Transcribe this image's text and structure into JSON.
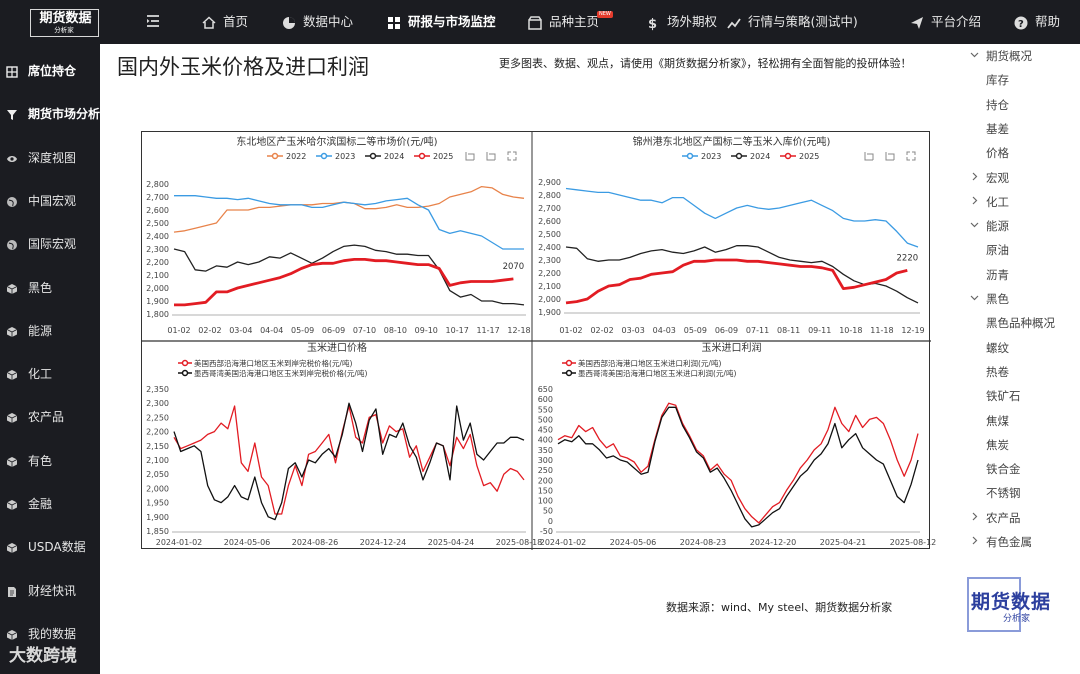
{
  "brand": {
    "name": "期货数据",
    "sub": "分析家"
  },
  "nav": [
    {
      "label": "首页",
      "icon": "home-icon"
    },
    {
      "label": "数据中心",
      "icon": "pie-icon"
    },
    {
      "label": "研报与市场监控",
      "icon": "grid-icon",
      "active": true
    },
    {
      "label": "品种主页",
      "icon": "store-icon",
      "badge": "NEW"
    },
    {
      "label": "场外期权",
      "icon": "dollar-icon"
    },
    {
      "label": "行情与策略(测试中)",
      "icon": "chart-up-icon"
    },
    {
      "label": "平台介绍",
      "icon": "send-icon"
    },
    {
      "label": "帮助",
      "icon": "help-icon"
    }
  ],
  "sidebar": [
    {
      "label": "席位持仓",
      "icon": "table-icon",
      "bold": true
    },
    {
      "label": "期货市场分析",
      "icon": "funnel-icon",
      "bold": true
    },
    {
      "label": "深度视图",
      "icon": "eye-icon"
    },
    {
      "label": "中国宏观",
      "icon": "globe-icon"
    },
    {
      "label": "国际宏观",
      "icon": "globe-icon"
    },
    {
      "label": "黑色",
      "icon": "cube-icon"
    },
    {
      "label": "能源",
      "icon": "cube-icon"
    },
    {
      "label": "化工",
      "icon": "cube-icon"
    },
    {
      "label": "农产品",
      "icon": "cube-icon"
    },
    {
      "label": "有色",
      "icon": "cube-icon"
    },
    {
      "label": "金融",
      "icon": "cube-icon"
    },
    {
      "label": "USDA数据",
      "icon": "cube-icon"
    },
    {
      "label": "财经快讯",
      "icon": "doc-icon"
    },
    {
      "label": "我的数据",
      "icon": "cube-icon"
    }
  ],
  "watermark": "大数跨境",
  "page": {
    "title": "国内外玉米价格及进口利润",
    "promo": "更多图表、数据、观点，请使用《期货数据分析家》，轻松拥有全面智能的投研体验！",
    "source": "数据来源：wind、My steel、期货数据分析家"
  },
  "rightnav": [
    {
      "label": "期货概况",
      "caret": "v",
      "level": 1
    },
    {
      "label": "库存",
      "level": 2
    },
    {
      "label": "持仓",
      "level": 2
    },
    {
      "label": "基差",
      "level": 2
    },
    {
      "label": "价格",
      "level": 2
    },
    {
      "label": "宏观",
      "caret": ">",
      "level": 1
    },
    {
      "label": "化工",
      "caret": ">",
      "level": 1
    },
    {
      "label": "能源",
      "caret": "v",
      "level": 1
    },
    {
      "label": "原油",
      "level": 2
    },
    {
      "label": "沥青",
      "level": 2
    },
    {
      "label": "黑色",
      "caret": "v",
      "level": 1
    },
    {
      "label": "黑色品种概况",
      "level": 2
    },
    {
      "label": "螺纹",
      "level": 2
    },
    {
      "label": "热卷",
      "level": 2
    },
    {
      "label": "铁矿石",
      "level": 2
    },
    {
      "label": "焦煤",
      "level": 2
    },
    {
      "label": "焦炭",
      "level": 2
    },
    {
      "label": "铁合金",
      "level": 2
    },
    {
      "label": "不锈钢",
      "level": 2
    },
    {
      "label": "农产品",
      "caret": ">",
      "level": 1
    },
    {
      "label": "有色金属",
      "caret": ">",
      "level": 1
    }
  ],
  "chart_data": [
    {
      "type": "line",
      "title": "东北地区产玉米哈尔滨国标二等市场价(元/吨)",
      "ylim": [
        1800,
        2800
      ],
      "yticks": [
        1800,
        1900,
        2000,
        2100,
        2200,
        2300,
        2400,
        2500,
        2600,
        2700,
        2800
      ],
      "xticks": [
        "01-02",
        "02-02",
        "03-04",
        "04-04",
        "05-09",
        "06-09",
        "07-10",
        "08-10",
        "09-10",
        "10-17",
        "11-17",
        "12-18"
      ],
      "annotation": "2070",
      "series": [
        {
          "name": "2022",
          "color": "#e8834a",
          "values": [
            2430,
            2440,
            2460,
            2480,
            2500,
            2600,
            2600,
            2600,
            2620,
            2620,
            2630,
            2640,
            2640,
            2640,
            2650,
            2650,
            2660,
            2650,
            2610,
            2610,
            2620,
            2640,
            2620,
            2620,
            2630,
            2650,
            2700,
            2720,
            2740,
            2780,
            2770,
            2720,
            2700,
            2690
          ]
        },
        {
          "name": "2023",
          "color": "#3b9be3",
          "values": [
            2710,
            2710,
            2710,
            2700,
            2690,
            2690,
            2680,
            2690,
            2670,
            2650,
            2640,
            2640,
            2640,
            2620,
            2620,
            2640,
            2660,
            2650,
            2640,
            2650,
            2670,
            2680,
            2690,
            2640,
            2600,
            2450,
            2420,
            2440,
            2420,
            2400,
            2350,
            2300,
            2300,
            2300
          ]
        },
        {
          "name": "2024",
          "color": "#222222",
          "values": [
            2300,
            2280,
            2140,
            2130,
            2170,
            2160,
            2200,
            2180,
            2200,
            2240,
            2230,
            2270,
            2230,
            2190,
            2230,
            2280,
            2320,
            2330,
            2320,
            2290,
            2280,
            2260,
            2260,
            2250,
            2250,
            2140,
            1980,
            1930,
            1950,
            1900,
            1900,
            1880,
            1880,
            1870
          ]
        },
        {
          "name": "2025",
          "color": "#e21c23",
          "values": [
            1870,
            1870,
            1880,
            1890,
            1970,
            1970,
            2000,
            2020,
            2040,
            2060,
            2080,
            2110,
            2150,
            2180,
            2190,
            2190,
            2210,
            2220,
            2220,
            2210,
            2210,
            2200,
            2190,
            2180,
            2180,
            2150,
            2020,
            2040,
            2050,
            2050,
            2050,
            2060,
            2070
          ]
        }
      ]
    },
    {
      "type": "line",
      "title": "锦州港东北地区产国标二等玉米入库价(元吨)",
      "ylim": [
        1900,
        2900
      ],
      "yticks": [
        1900,
        2000,
        2100,
        2200,
        2300,
        2400,
        2500,
        2600,
        2700,
        2800,
        2900
      ],
      "xticks": [
        "01-02",
        "02-02",
        "03-03",
        "04-03",
        "05-09",
        "06-09",
        "07-11",
        "08-11",
        "09-11",
        "10-18",
        "11-18",
        "12-19"
      ],
      "annotation": "2220",
      "series": [
        {
          "name": "2023",
          "color": "#3b9be3",
          "values": [
            2850,
            2840,
            2830,
            2820,
            2820,
            2800,
            2780,
            2760,
            2760,
            2740,
            2780,
            2780,
            2720,
            2660,
            2620,
            2660,
            2700,
            2720,
            2700,
            2690,
            2700,
            2720,
            2740,
            2760,
            2720,
            2680,
            2620,
            2600,
            2600,
            2610,
            2600,
            2520,
            2430,
            2400
          ]
        },
        {
          "name": "2024",
          "color": "#222222",
          "values": [
            2400,
            2390,
            2310,
            2290,
            2300,
            2300,
            2320,
            2350,
            2370,
            2380,
            2360,
            2350,
            2370,
            2400,
            2360,
            2380,
            2410,
            2410,
            2400,
            2360,
            2320,
            2300,
            2290,
            2280,
            2290,
            2250,
            2190,
            2140,
            2110,
            2120,
            2100,
            2060,
            2010,
            1970
          ]
        },
        {
          "name": "2025",
          "color": "#e21c23",
          "values": [
            1970,
            1980,
            2000,
            2060,
            2100,
            2110,
            2150,
            2160,
            2190,
            2200,
            2210,
            2260,
            2290,
            2290,
            2300,
            2300,
            2300,
            2290,
            2290,
            2280,
            2270,
            2260,
            2250,
            2250,
            2240,
            2220,
            2080,
            2090,
            2110,
            2130,
            2150,
            2200,
            2220
          ]
        }
      ]
    },
    {
      "type": "line",
      "title": "玉米进口价格",
      "ylim": [
        1850,
        2350
      ],
      "yticks": [
        1850,
        1900,
        1950,
        2000,
        2050,
        2100,
        2150,
        2200,
        2250,
        2300,
        2350
      ],
      "xticks": [
        "2024-01-02",
        "2024-05-06",
        "2024-08-26",
        "2024-12-24",
        "2025-04-24",
        "2025-08-18"
      ],
      "series": [
        {
          "name": "美国西部沿海港口地区玉米到岸完税价格(元/吨)",
          "color": "#e21c23",
          "values": [
            2180,
            2140,
            2150,
            2160,
            2170,
            2190,
            2200,
            2230,
            2210,
            2290,
            2090,
            2060,
            2160,
            2040,
            2010,
            1910,
            1910,
            2010,
            2080,
            2010,
            2120,
            2130,
            2160,
            2190,
            2090,
            2200,
            2290,
            2180,
            2160,
            2250,
            2260,
            2160,
            2220,
            2200,
            2210,
            2110,
            2150,
            2060,
            2110,
            2160,
            2150,
            2080,
            2180,
            2140,
            2190,
            2080,
            2010,
            2020,
            1990,
            2050,
            2070,
            2060,
            2030
          ]
        },
        {
          "name": "墨西哥湾美国沿海港口地区玉米到岸完税价格(元/吨)",
          "color": "#111111",
          "values": [
            2200,
            2130,
            2140,
            2150,
            2130,
            2010,
            1960,
            1950,
            1970,
            2010,
            1970,
            1960,
            2040,
            1950,
            1900,
            1890,
            1950,
            2070,
            2090,
            2040,
            2100,
            2090,
            2120,
            2140,
            2110,
            2190,
            2300,
            2230,
            2130,
            2240,
            2280,
            2120,
            2190,
            2180,
            2230,
            2150,
            2110,
            2030,
            2090,
            2160,
            2150,
            2030,
            2290,
            2170,
            2230,
            2120,
            2100,
            2130,
            2160,
            2160,
            2180,
            2180,
            2170
          ]
        }
      ]
    },
    {
      "type": "line",
      "title": "玉米进口利润",
      "ylim": [
        -50,
        650
      ],
      "yticks": [
        -50,
        0,
        50,
        100,
        150,
        200,
        250,
        300,
        350,
        400,
        450,
        500,
        550,
        600,
        650
      ],
      "xticks": [
        "2024-01-02",
        "2024-05-06",
        "2024-08-23",
        "2024-12-20",
        "2025-04-21",
        "2025-08-12"
      ],
      "series": [
        {
          "name": "美国西部沿海港口地区玉米进口利润(元/吨)",
          "color": "#e21c23",
          "values": [
            400,
            420,
            410,
            470,
            440,
            460,
            400,
            360,
            380,
            320,
            310,
            290,
            240,
            270,
            400,
            520,
            580,
            570,
            480,
            420,
            350,
            320,
            250,
            280,
            230,
            200,
            120,
            60,
            20,
            -10,
            30,
            70,
            90,
            150,
            200,
            260,
            300,
            350,
            380,
            450,
            560,
            480,
            440,
            520,
            460,
            500,
            510,
            480,
            400,
            300,
            220,
            300,
            430
          ]
        },
        {
          "name": "墨西哥湾美国沿海港口地区玉米进口利润(元/吨)",
          "color": "#111111",
          "values": [
            380,
            400,
            390,
            420,
            380,
            380,
            350,
            310,
            320,
            300,
            290,
            260,
            230,
            240,
            390,
            510,
            560,
            560,
            470,
            410,
            340,
            310,
            240,
            260,
            210,
            150,
            80,
            10,
            -30,
            -20,
            10,
            40,
            60,
            120,
            170,
            220,
            250,
            300,
            330,
            380,
            480,
            360,
            400,
            430,
            360,
            330,
            300,
            280,
            200,
            120,
            90,
            180,
            300
          ]
        }
      ]
    }
  ]
}
